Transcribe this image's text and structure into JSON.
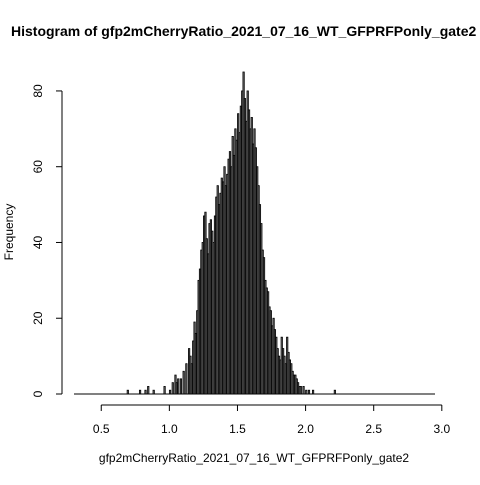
{
  "chart_data": {
    "type": "bar",
    "title": "Histogram of gfp2mCherryRatio_2021_07_16_WT_GFPRFPonly_gate2",
    "xlabel": "gfp2mCherryRatio_2021_07_16_WT_GFPRFPonly_gate2",
    "ylabel": "Frequency",
    "xlim": [
      0.3,
      2.95
    ],
    "ylim": [
      0,
      85
    ],
    "x_ticks": [
      "0.5",
      "1.0",
      "1.5",
      "2.0",
      "2.5",
      "3.0"
    ],
    "y_ticks": [
      "0",
      "20",
      "40",
      "60",
      "80"
    ],
    "bin_width": 0.01,
    "bins": [
      {
        "x": 0.69,
        "y": 1
      },
      {
        "x": 0.78,
        "y": 1
      },
      {
        "x": 0.82,
        "y": 1
      },
      {
        "x": 0.84,
        "y": 2
      },
      {
        "x": 0.88,
        "y": 1
      },
      {
        "x": 0.96,
        "y": 2
      },
      {
        "x": 1.0,
        "y": 1
      },
      {
        "x": 1.02,
        "y": 3
      },
      {
        "x": 1.04,
        "y": 5
      },
      {
        "x": 1.05,
        "y": 3
      },
      {
        "x": 1.06,
        "y": 4
      },
      {
        "x": 1.08,
        "y": 4
      },
      {
        "x": 1.1,
        "y": 6
      },
      {
        "x": 1.12,
        "y": 8
      },
      {
        "x": 1.14,
        "y": 12
      },
      {
        "x": 1.15,
        "y": 10
      },
      {
        "x": 1.16,
        "y": 8
      },
      {
        "x": 1.17,
        "y": 14
      },
      {
        "x": 1.18,
        "y": 19
      },
      {
        "x": 1.19,
        "y": 16
      },
      {
        "x": 1.2,
        "y": 22
      },
      {
        "x": 1.21,
        "y": 30
      },
      {
        "x": 1.22,
        "y": 33
      },
      {
        "x": 1.23,
        "y": 38
      },
      {
        "x": 1.24,
        "y": 40
      },
      {
        "x": 1.25,
        "y": 47
      },
      {
        "x": 1.26,
        "y": 48
      },
      {
        "x": 1.27,
        "y": 41
      },
      {
        "x": 1.28,
        "y": 37
      },
      {
        "x": 1.29,
        "y": 45
      },
      {
        "x": 1.3,
        "y": 46
      },
      {
        "x": 1.31,
        "y": 43
      },
      {
        "x": 1.32,
        "y": 40
      },
      {
        "x": 1.33,
        "y": 47
      },
      {
        "x": 1.34,
        "y": 52
      },
      {
        "x": 1.35,
        "y": 55
      },
      {
        "x": 1.36,
        "y": 50
      },
      {
        "x": 1.37,
        "y": 53
      },
      {
        "x": 1.38,
        "y": 57
      },
      {
        "x": 1.39,
        "y": 56
      },
      {
        "x": 1.4,
        "y": 60
      },
      {
        "x": 1.41,
        "y": 55
      },
      {
        "x": 1.42,
        "y": 58
      },
      {
        "x": 1.43,
        "y": 62
      },
      {
        "x": 1.44,
        "y": 64
      },
      {
        "x": 1.45,
        "y": 60
      },
      {
        "x": 1.46,
        "y": 68
      },
      {
        "x": 1.47,
        "y": 63
      },
      {
        "x": 1.48,
        "y": 70
      },
      {
        "x": 1.49,
        "y": 67
      },
      {
        "x": 1.5,
        "y": 74
      },
      {
        "x": 1.51,
        "y": 69
      },
      {
        "x": 1.52,
        "y": 76
      },
      {
        "x": 1.53,
        "y": 80
      },
      {
        "x": 1.54,
        "y": 85
      },
      {
        "x": 1.55,
        "y": 78
      },
      {
        "x": 1.56,
        "y": 72
      },
      {
        "x": 1.57,
        "y": 80
      },
      {
        "x": 1.58,
        "y": 75
      },
      {
        "x": 1.59,
        "y": 70
      },
      {
        "x": 1.6,
        "y": 73
      },
      {
        "x": 1.61,
        "y": 66
      },
      {
        "x": 1.62,
        "y": 70
      },
      {
        "x": 1.63,
        "y": 65
      },
      {
        "x": 1.64,
        "y": 60
      },
      {
        "x": 1.65,
        "y": 55
      },
      {
        "x": 1.66,
        "y": 50
      },
      {
        "x": 1.67,
        "y": 45
      },
      {
        "x": 1.68,
        "y": 38
      },
      {
        "x": 1.69,
        "y": 36
      },
      {
        "x": 1.7,
        "y": 30
      },
      {
        "x": 1.71,
        "y": 28
      },
      {
        "x": 1.72,
        "y": 27
      },
      {
        "x": 1.73,
        "y": 23
      },
      {
        "x": 1.74,
        "y": 22
      },
      {
        "x": 1.75,
        "y": 18
      },
      {
        "x": 1.76,
        "y": 20
      },
      {
        "x": 1.77,
        "y": 17
      },
      {
        "x": 1.78,
        "y": 15
      },
      {
        "x": 1.79,
        "y": 12
      },
      {
        "x": 1.8,
        "y": 10
      },
      {
        "x": 1.81,
        "y": 9
      },
      {
        "x": 1.82,
        "y": 15
      },
      {
        "x": 1.83,
        "y": 12
      },
      {
        "x": 1.84,
        "y": 10
      },
      {
        "x": 1.85,
        "y": 8
      },
      {
        "x": 1.86,
        "y": 15
      },
      {
        "x": 1.87,
        "y": 11
      },
      {
        "x": 1.88,
        "y": 9
      },
      {
        "x": 1.89,
        "y": 8
      },
      {
        "x": 1.9,
        "y": 6
      },
      {
        "x": 1.91,
        "y": 5
      },
      {
        "x": 1.92,
        "y": 5
      },
      {
        "x": 1.93,
        "y": 4
      },
      {
        "x": 1.94,
        "y": 3
      },
      {
        "x": 1.95,
        "y": 2
      },
      {
        "x": 1.96,
        "y": 2
      },
      {
        "x": 1.98,
        "y": 2
      },
      {
        "x": 2.0,
        "y": 1
      },
      {
        "x": 2.02,
        "y": 1
      },
      {
        "x": 2.05,
        "y": 1
      },
      {
        "x": 2.21,
        "y": 1
      }
    ]
  }
}
